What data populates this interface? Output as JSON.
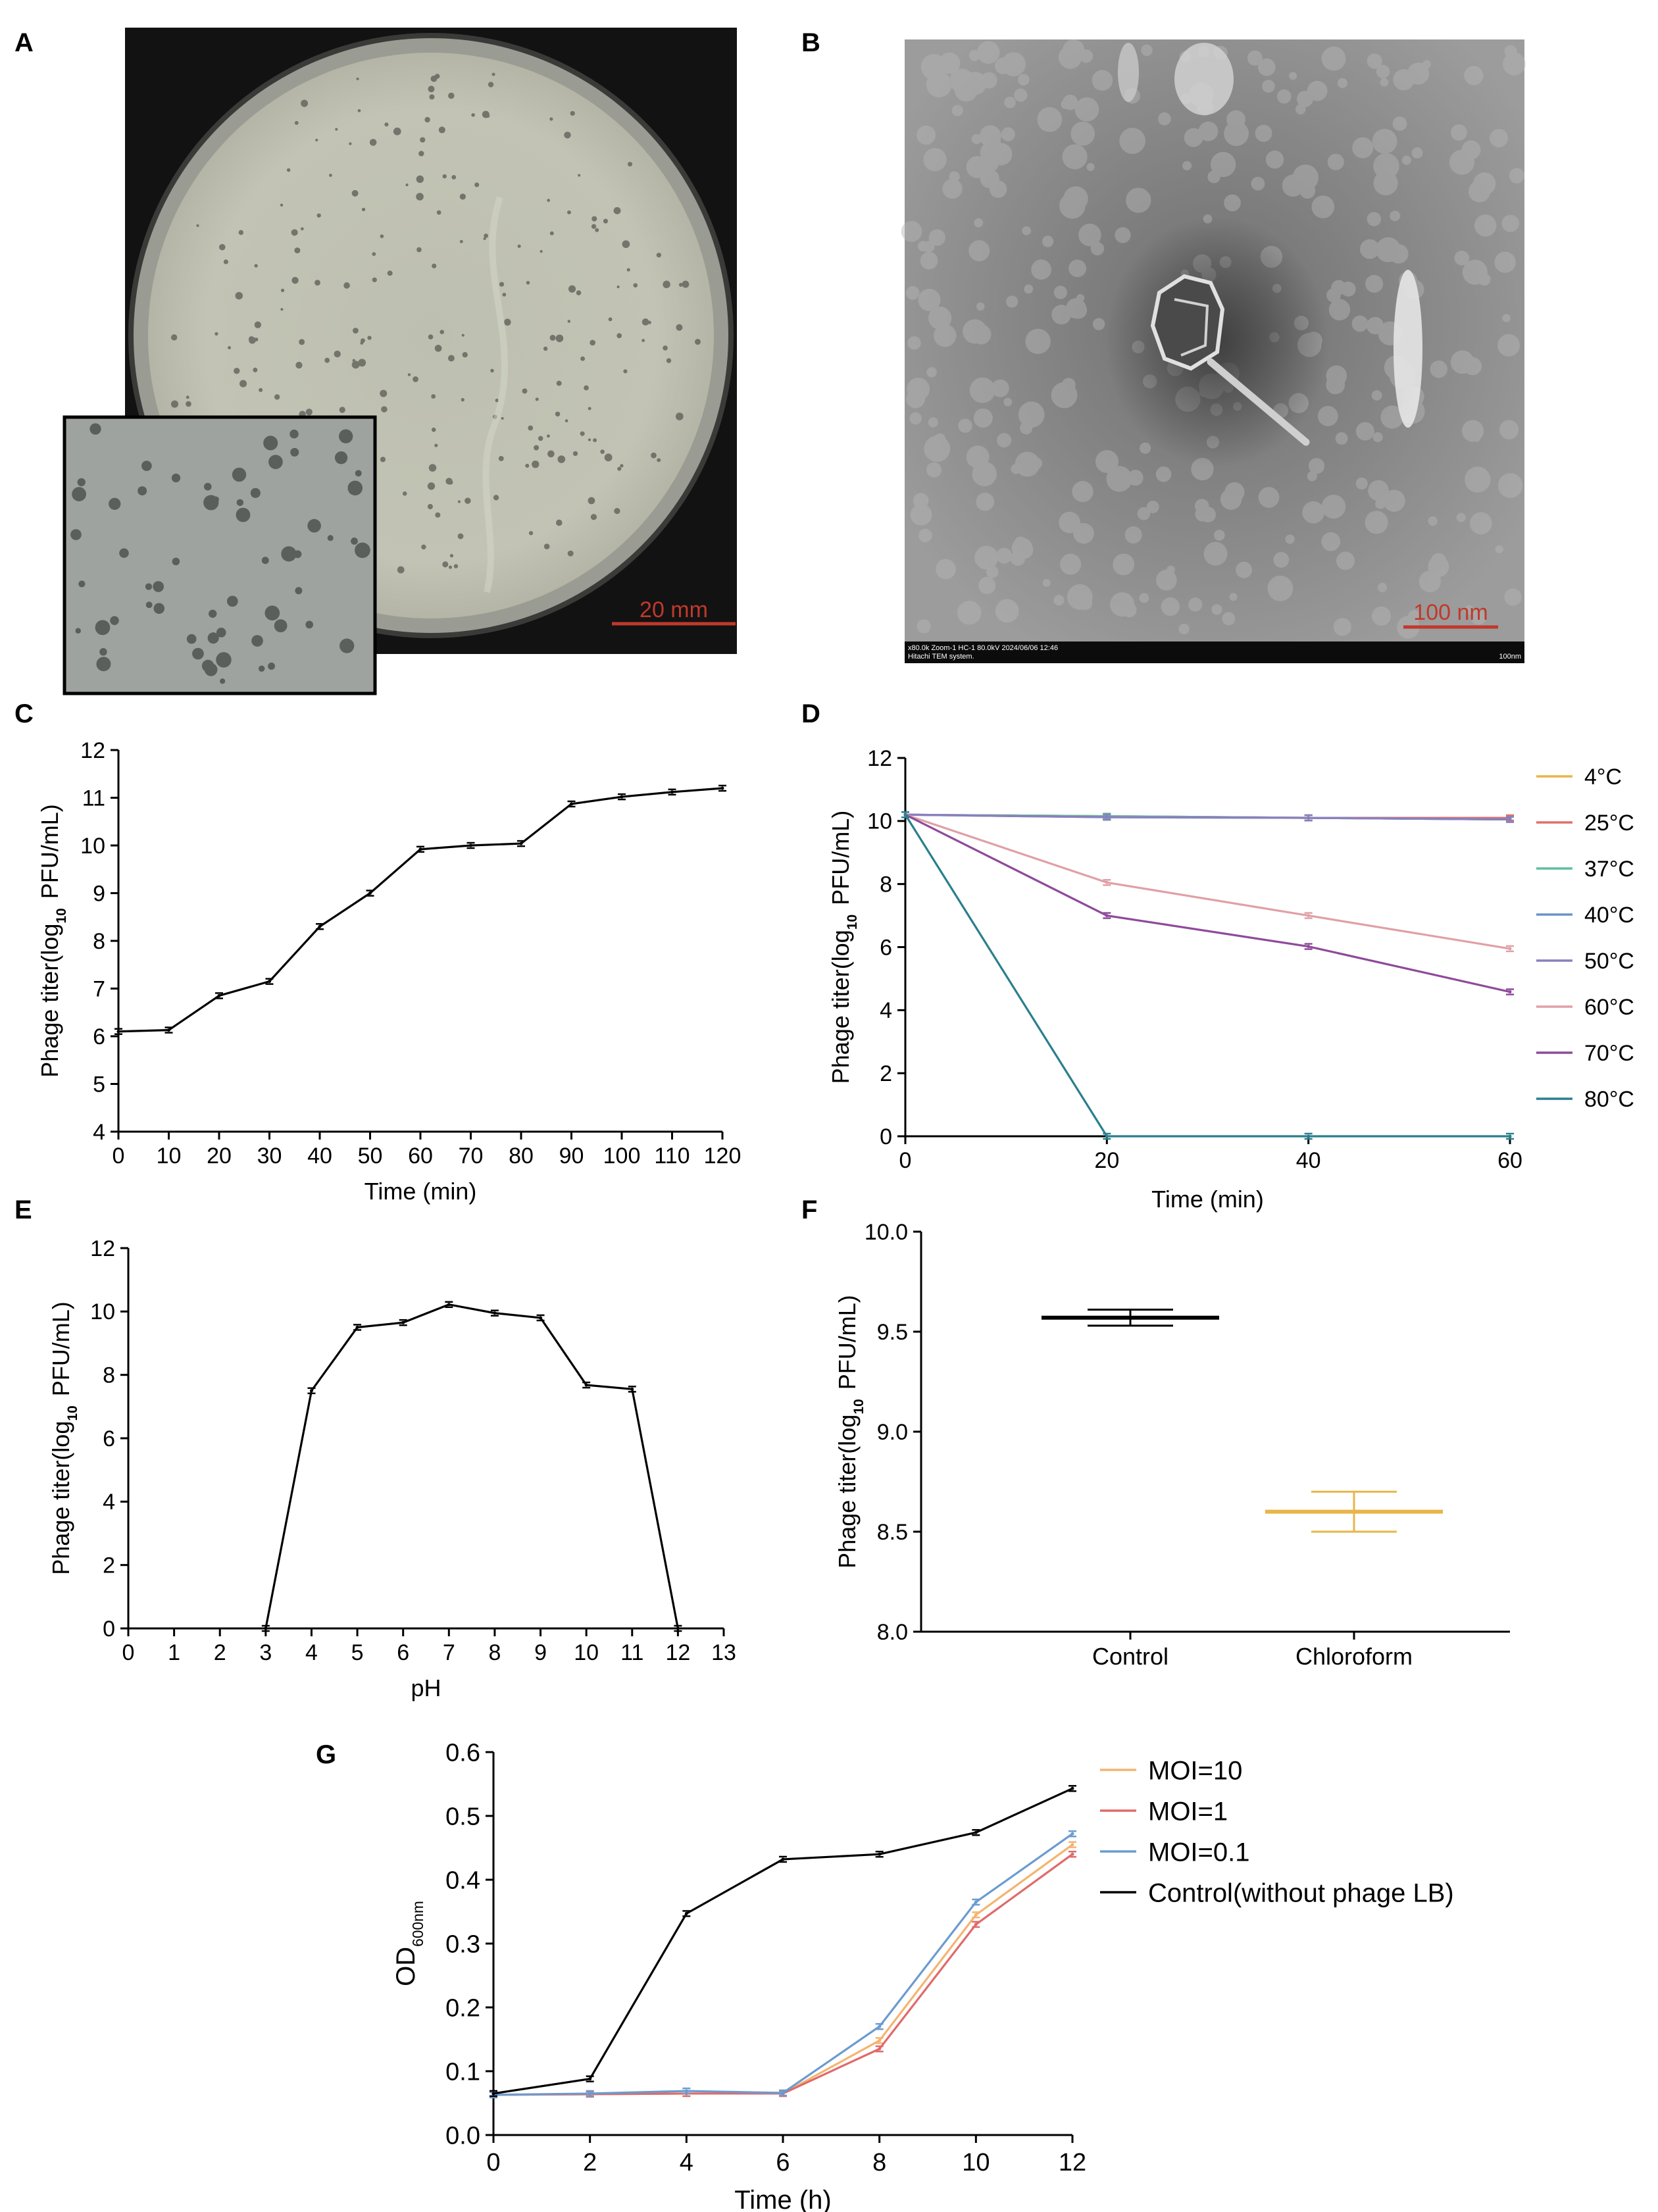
{
  "panel_labels": [
    "A",
    "B",
    "C",
    "D",
    "E",
    "F",
    "G"
  ],
  "photo_a": {
    "scale_bar": "20 mm",
    "scale_color": "#c0392b"
  },
  "photo_b": {
    "scale_bar": "100 nm",
    "scale_color": "#c0392b",
    "caption_left": "x80.0k Zoom-1 HC-1 80.0kV 2024/06/06 12:46",
    "caption_left2": "Hitachi TEM system.",
    "caption_right": "100nm"
  },
  "chart_data": [
    {
      "id": "C",
      "type": "line",
      "xlabel": "Time (min)",
      "ylabel": "Phage titer(log10 PFU/mL)",
      "xlim": [
        0,
        120
      ],
      "ylim": [
        4,
        12
      ],
      "xticks": [
        "0",
        "10",
        "20",
        "30",
        "40",
        "50",
        "60",
        "70",
        "80",
        "90",
        "100",
        "110",
        "120"
      ],
      "yticks": [
        "4",
        "5",
        "6",
        "7",
        "8",
        "9",
        "10",
        "11",
        "12"
      ],
      "series": [
        {
          "color": "#000000",
          "x": [
            0,
            10,
            20,
            30,
            40,
            50,
            60,
            70,
            80,
            90,
            100,
            110,
            120
          ],
          "y": [
            6.1,
            6.13,
            6.85,
            7.15,
            8.3,
            9.0,
            9.92,
            10.0,
            10.04,
            10.87,
            11.02,
            11.12,
            11.2
          ]
        }
      ]
    },
    {
      "id": "D",
      "type": "line",
      "xlabel": "Time (min)",
      "ylabel": "Phage titer(log10 PFU/mL)",
      "xlim": [
        0,
        60
      ],
      "ylim": [
        0,
        12
      ],
      "xticks": [
        "0",
        "20",
        "40",
        "60"
      ],
      "yticks": [
        "0",
        "2",
        "4",
        "6",
        "8",
        "10",
        "12"
      ],
      "legend_position": "right",
      "series": [
        {
          "name": "4°C",
          "color": "#e8b54a",
          "x": [
            0,
            20,
            40,
            60
          ],
          "y": [
            10.2,
            10.15,
            10.1,
            10.1
          ]
        },
        {
          "name": "25°C",
          "color": "#e0706a",
          "x": [
            0,
            20,
            40,
            60
          ],
          "y": [
            10.2,
            10.15,
            10.1,
            10.1
          ]
        },
        {
          "name": "37°C",
          "color": "#5fbf9b",
          "x": [
            0,
            20,
            40,
            60
          ],
          "y": [
            10.2,
            10.15,
            10.1,
            10.05
          ]
        },
        {
          "name": "40°C",
          "color": "#6b93c8",
          "x": [
            0,
            20,
            40,
            60
          ],
          "y": [
            10.2,
            10.12,
            10.1,
            10.05
          ]
        },
        {
          "name": "50°C",
          "color": "#8a7fbf",
          "x": [
            0,
            20,
            40,
            60
          ],
          "y": [
            10.2,
            10.12,
            10.1,
            10.05
          ]
        },
        {
          "name": "60°C",
          "color": "#e0a0a6",
          "x": [
            0,
            20,
            40,
            60
          ],
          "y": [
            10.2,
            8.05,
            7.0,
            5.95
          ]
        },
        {
          "name": "70°C",
          "color": "#8e4a9a",
          "x": [
            0,
            20,
            40,
            60
          ],
          "y": [
            10.2,
            7.0,
            6.02,
            4.58
          ]
        },
        {
          "name": "80°C",
          "color": "#2a7f8c",
          "x": [
            0,
            20,
            40,
            60
          ],
          "y": [
            10.2,
            0,
            0,
            0
          ]
        }
      ]
    },
    {
      "id": "E",
      "type": "line",
      "xlabel": "pH",
      "ylabel": "Phage titer(log10 PFU/mL)",
      "xlim": [
        0,
        13
      ],
      "ylim": [
        0,
        12
      ],
      "xticks": [
        "0",
        "1",
        "2",
        "3",
        "4",
        "5",
        "6",
        "7",
        "8",
        "9",
        "10",
        "11",
        "12",
        "13"
      ],
      "yticks": [
        "0",
        "2",
        "4",
        "6",
        "8",
        "10",
        "12"
      ],
      "series": [
        {
          "color": "#000000",
          "x": [
            3,
            4,
            5,
            6,
            7,
            8,
            9,
            10,
            11,
            12
          ],
          "y": [
            0,
            7.5,
            9.5,
            9.65,
            10.22,
            9.95,
            9.8,
            7.68,
            7.55,
            0
          ]
        }
      ]
    },
    {
      "id": "F",
      "type": "scatter",
      "xlabel": "",
      "ylabel": "Phage titer(log10 PFU/mL)",
      "ylim": [
        8.0,
        10.0
      ],
      "yticks": [
        "8.0",
        "8.5",
        "9.0",
        "9.5",
        "10.0"
      ],
      "categories": [
        "Control",
        "Chloroform"
      ],
      "series": [
        {
          "name": "Control",
          "color": "#000000",
          "mean": 9.57,
          "err": 0.04
        },
        {
          "name": "Chloroform",
          "color": "#e8b54a",
          "mean": 8.6,
          "err": 0.1
        }
      ]
    },
    {
      "id": "G",
      "type": "line",
      "xlabel": "Time (h)",
      "ylabel": "OD",
      "ylabel_sub": "600nm",
      "xlim": [
        0,
        12
      ],
      "ylim": [
        0.0,
        0.6
      ],
      "xticks": [
        "0",
        "2",
        "4",
        "6",
        "8",
        "10",
        "12"
      ],
      "yticks": [
        "0.0",
        "0.1",
        "0.2",
        "0.3",
        "0.4",
        "0.5",
        "0.6"
      ],
      "legend_position": "top-right",
      "series": [
        {
          "name": "MOI=10",
          "color": "#f4b470",
          "x": [
            0,
            2,
            4,
            6,
            8,
            10,
            12
          ],
          "y": [
            0.063,
            0.064,
            0.065,
            0.065,
            0.148,
            0.345,
            0.455
          ]
        },
        {
          "name": "MOI=1",
          "color": "#e06a6a",
          "x": [
            0,
            2,
            4,
            6,
            8,
            10,
            12
          ],
          "y": [
            0.063,
            0.064,
            0.065,
            0.065,
            0.135,
            0.33,
            0.44
          ]
        },
        {
          "name": "MOI=0.1",
          "color": "#6b9bd0",
          "x": [
            0,
            2,
            4,
            6,
            8,
            10,
            12
          ],
          "y": [
            0.063,
            0.065,
            0.069,
            0.066,
            0.17,
            0.365,
            0.472
          ]
        },
        {
          "name": "Control(without phage LB)",
          "color": "#000000",
          "x": [
            0,
            2,
            4,
            6,
            8,
            10,
            12
          ],
          "y": [
            0.065,
            0.088,
            0.347,
            0.432,
            0.44,
            0.474,
            0.543
          ]
        }
      ]
    }
  ]
}
